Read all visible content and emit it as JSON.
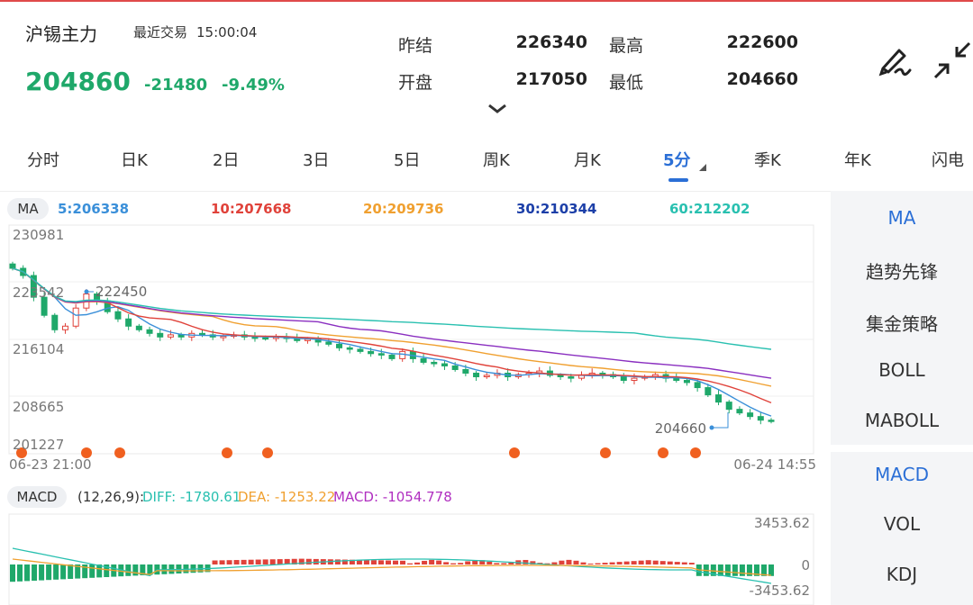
{
  "header": {
    "title": "沪锡主力",
    "last_trade_label": "最近交易",
    "last_trade_time": "15:00:04",
    "price": "204860",
    "change": "-21480",
    "change_pct": "-9.49%",
    "quotes": [
      {
        "label": "昨结",
        "value": "226340"
      },
      {
        "label": "最高",
        "value": "222600"
      },
      {
        "label": "开盘",
        "value": "217050"
      },
      {
        "label": "最低",
        "value": "204660"
      }
    ],
    "icons": [
      "draw-icon",
      "collapse-icon",
      "chevron-down-icon"
    ]
  },
  "tabs": [
    "分时",
    "日K",
    "2日",
    "3日",
    "5日",
    "周K",
    "月K",
    "5分",
    "季K",
    "年K",
    "闪电"
  ],
  "active_tab": "5分",
  "ma_bar": {
    "label": "MA",
    "items": [
      {
        "text": "5:206338",
        "color": "#3a8fd9"
      },
      {
        "text": "10:207668",
        "color": "#e0423a"
      },
      {
        "text": "20:209736",
        "color": "#f0a030"
      },
      {
        "text": "30:210344",
        "color": "#1c3fa8"
      },
      {
        "text": "60:212202",
        "color": "#29c0b0"
      }
    ]
  },
  "kline": {
    "y_ticks": [
      "230981",
      "223542",
      "216104",
      "208665",
      "201227"
    ],
    "x_start": "06-23 21:00",
    "x_end": "06-24 14:55",
    "high_label": "222450",
    "low_label": "204660"
  },
  "macd": {
    "label": "MACD",
    "params": "(12,26,9):",
    "diff": "DIFF: -1780.61",
    "dea": "DEA: -1253.22",
    "macd": "MACD: -1054.778",
    "y_top": "3453.62",
    "y_mid": "0",
    "y_bottom": "-3453.62",
    "colors": {
      "diff": "#29c0b0",
      "dea": "#f0a030",
      "macd": "#b02fc0",
      "up": "#e0423a",
      "down": "#1fa86a"
    }
  },
  "sidebar": {
    "items": [
      "MA",
      "趋势先锋",
      "集金策略",
      "BOLL",
      "MABOLL",
      "MACD",
      "VOL",
      "KDJ"
    ],
    "active": [
      "MA",
      "MACD"
    ]
  },
  "chart_data": {
    "type": "candlestick",
    "title": "",
    "ylim": [
      201227,
      230981
    ],
    "x_range": [
      "06-23 21:00",
      "06-24 14:55"
    ],
    "approx_close_series": [
      226000,
      225000,
      222000,
      219500,
      217500,
      218000,
      220500,
      222450,
      221500,
      220000,
      219000,
      218000,
      217500,
      217000,
      216500,
      216800,
      216500,
      217000,
      216800,
      216500,
      216600,
      216800,
      216500,
      216400,
      216300,
      216500,
      216300,
      216000,
      216200,
      215800,
      215500,
      215000,
      214800,
      214500,
      214200,
      214000,
      213500,
      214500,
      213500,
      213000,
      212800,
      212500,
      212000,
      211500,
      211000,
      211200,
      211500,
      211000,
      211300,
      211500,
      211800,
      211200,
      211000,
      210800,
      211200,
      211500,
      211300,
      211000,
      210500,
      210800,
      211000,
      211300,
      210800,
      210500,
      210200,
      209500,
      208500,
      207500,
      206500,
      206000,
      205500,
      205000,
      204860
    ],
    "ma": {
      "MA5": 206338,
      "MA10": 207668,
      "MA20": 209736,
      "MA30": 210344,
      "MA60": 212202
    },
    "high": 222450,
    "low": 204660
  }
}
